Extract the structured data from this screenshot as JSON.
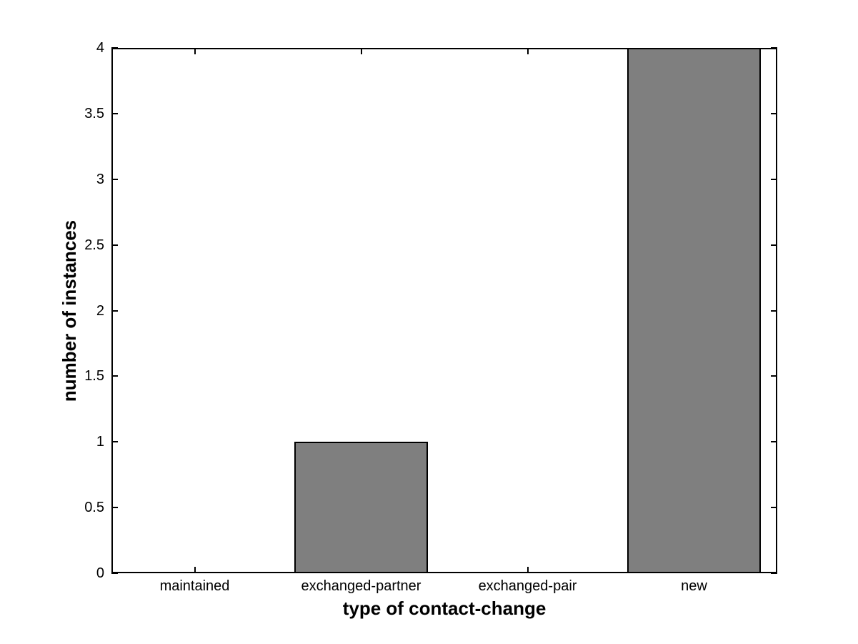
{
  "figure": {
    "background": "#ffffff"
  },
  "chart_data": {
    "type": "bar",
    "title": "",
    "categories": [
      "maintained",
      "exchanged-partner",
      "exchanged-pair",
      "new"
    ],
    "values": [
      0,
      1,
      0,
      4
    ],
    "xlabel": "type of contact-change",
    "ylabel": "number of instances",
    "xlim": [
      0.5,
      4.5
    ],
    "ylim": [
      0,
      4
    ],
    "yticks": [
      0,
      0.5,
      1,
      1.5,
      2,
      2.5,
      3,
      3.5,
      4
    ],
    "ytick_labels": [
      "0",
      "0.5",
      "1",
      "1.5",
      "2",
      "2.5",
      "3",
      "3.5",
      "4"
    ],
    "bar_width_fraction": 0.8,
    "bar_color": "#7f7f7f",
    "bar_edge_color": "#000000",
    "axis_color": "#000000",
    "grid": false,
    "legend": null,
    "tick_direction": "in"
  }
}
